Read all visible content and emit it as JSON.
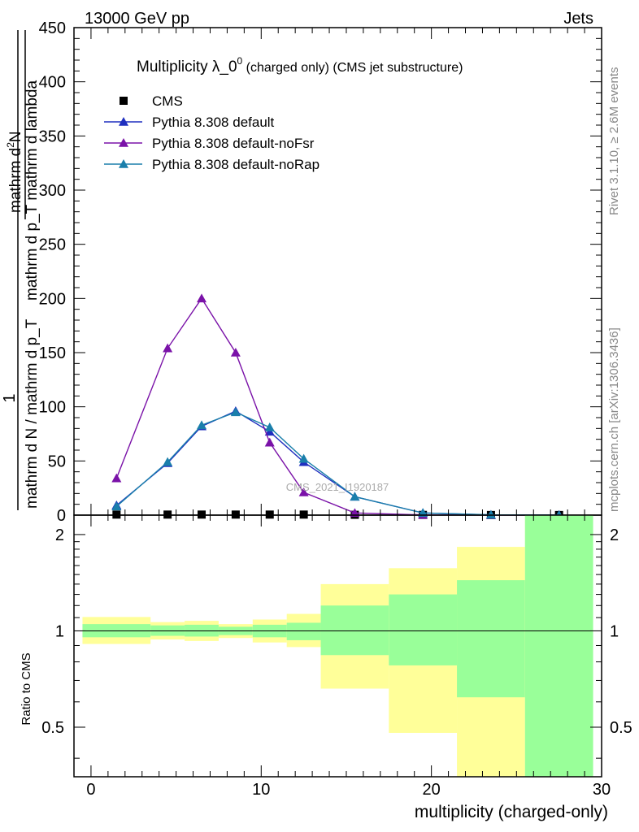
{
  "header": {
    "left": "13000 GeV pp",
    "right": "Jets"
  },
  "side_text": {
    "rivet": "Rivet 3.1.10, ≥ 2.6M events",
    "mcplots": "mcplots.cern.ch [arXiv:1306.3436]"
  },
  "watermark": "CMS_2021_I1920187",
  "chart_data": [
    {
      "type": "line",
      "title_main": "Multiplicity λ_0",
      "title_sup": "0",
      "title_rest": " (charged only) (CMS jet substructure)",
      "ylabel_num": "mathrm d",
      "ylabel_num_sup": "2",
      "ylabel_num_N": "N",
      "ylabel_den": "mathrm d p_T mathrm d lambda",
      "ylabel_frac1": "1",
      "ylabel_frac1_den": "mathrm d N / mathrm d p_T",
      "ylim": [
        0,
        450
      ],
      "yticks": [
        0,
        50,
        100,
        150,
        200,
        250,
        300,
        350,
        400,
        450
      ],
      "xlim": [
        -1,
        30
      ],
      "legend_position": "top-left",
      "series": [
        {
          "name": "CMS",
          "color": "#000000",
          "marker": "square",
          "x": [
            1.5,
            4.5,
            6.5,
            8.5,
            10.5,
            12.5,
            15.5,
            19.5,
            23.5,
            27.5
          ],
          "values": [
            0.5,
            0.5,
            0.5,
            0.5,
            0.5,
            0.5,
            0.3,
            0.2,
            0.1,
            0.1
          ]
        },
        {
          "name": "Pythia 8.308 default",
          "color": "#1f2fbf",
          "marker": "triangle",
          "x": [
            1.5,
            4.5,
            6.5,
            8.5,
            10.5,
            12.5,
            15.5,
            19.5,
            23.5,
            27.5
          ],
          "values": [
            9,
            48,
            82,
            96,
            77,
            49,
            17,
            2,
            0.2,
            0.1
          ]
        },
        {
          "name": "Pythia 8.308 default-noFsr",
          "color": "#7a12a8",
          "marker": "triangle",
          "x": [
            1.5,
            4.5,
            6.5,
            8.5,
            10.5,
            12.5,
            15.5,
            19.5,
            23.5,
            27.5
          ],
          "values": [
            34,
            154,
            200,
            150,
            67,
            21,
            2,
            0.2,
            0.05,
            0.02
          ]
        },
        {
          "name": "Pythia 8.308 default-noRap",
          "color": "#1a7fab",
          "marker": "triangle",
          "x": [
            1.5,
            4.5,
            6.5,
            8.5,
            10.5,
            12.5,
            15.5,
            19.5,
            23.5,
            27.5
          ],
          "values": [
            8,
            49,
            83,
            95,
            81,
            52,
            17,
            2,
            0.3,
            0.1
          ]
        }
      ]
    },
    {
      "type": "area",
      "ylabel": "Ratio to CMS",
      "xlabel": "multiplicity (charged-only)",
      "ylim": [
        0.35,
        2.3
      ],
      "scale": "log",
      "yticks": [
        0.5,
        1,
        2
      ],
      "xticks": [
        0,
        10,
        20,
        30
      ],
      "xlim": [
        -1,
        30
      ],
      "reference_line": 1,
      "bins": [
        {
          "x_lo": -0.5,
          "x_hi": 3.5,
          "stat_lo": 0.955,
          "stat_hi": 1.05,
          "tot_lo": 0.91,
          "tot_hi": 1.105
        },
        {
          "x_lo": 3.5,
          "x_hi": 5.5,
          "stat_lo": 0.965,
          "stat_hi": 1.04,
          "tot_lo": 0.94,
          "tot_hi": 1.065
        },
        {
          "x_lo": 5.5,
          "x_hi": 7.5,
          "stat_lo": 0.96,
          "stat_hi": 1.045,
          "tot_lo": 0.93,
          "tot_hi": 1.075
        },
        {
          "x_lo": 7.5,
          "x_hi": 9.5,
          "stat_lo": 0.97,
          "stat_hi": 1.03,
          "tot_lo": 0.95,
          "tot_hi": 1.05
        },
        {
          "x_lo": 9.5,
          "x_hi": 11.5,
          "stat_lo": 0.955,
          "stat_hi": 1.045,
          "tot_lo": 0.92,
          "tot_hi": 1.085
        },
        {
          "x_lo": 11.5,
          "x_hi": 13.5,
          "stat_lo": 0.935,
          "stat_hi": 1.06,
          "tot_lo": 0.89,
          "tot_hi": 1.13
        },
        {
          "x_lo": 13.5,
          "x_hi": 17.5,
          "stat_lo": 0.84,
          "stat_hi": 1.2,
          "tot_lo": 0.66,
          "tot_hi": 1.4
        },
        {
          "x_lo": 17.5,
          "x_hi": 21.5,
          "stat_lo": 0.78,
          "stat_hi": 1.3,
          "tot_lo": 0.48,
          "tot_hi": 1.57
        },
        {
          "x_lo": 21.5,
          "x_hi": 25.5,
          "stat_lo": 0.62,
          "stat_hi": 1.44,
          "tot_lo": 0.34,
          "tot_hi": 1.83
        },
        {
          "x_lo": 25.5,
          "x_hi": 29.5,
          "stat_lo": 0.34,
          "stat_hi": 2.3,
          "tot_lo": 0.34,
          "tot_hi": 2.3
        }
      ],
      "colors": {
        "stat": "#99ff99",
        "total": "#ffff99"
      }
    }
  ]
}
